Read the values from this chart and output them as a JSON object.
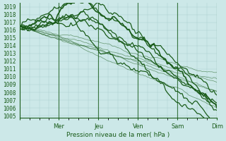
{
  "title": "",
  "xlabel": "Pression niveau de la mer( hPa )",
  "ylabel": "",
  "ylim": [
    1005,
    1019.5
  ],
  "yticks": [
    1005,
    1006,
    1007,
    1008,
    1009,
    1010,
    1011,
    1012,
    1013,
    1014,
    1015,
    1016,
    1017,
    1018,
    1019
  ],
  "day_labels": [
    "Mer",
    "Jeu",
    "Ven",
    "Sam",
    "Dim"
  ],
  "bg_color": "#cce8e8",
  "grid_color": "#aacccc",
  "line_color_dark": "#1a5c1a",
  "line_color_light": "#2d8c2d",
  "n_points": 120,
  "days": 5
}
